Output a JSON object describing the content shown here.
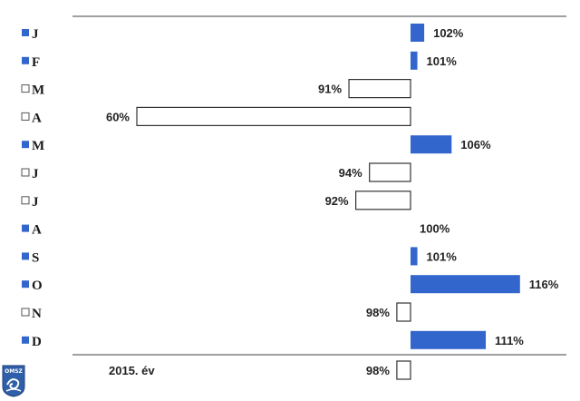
{
  "chart_data": {
    "type": "bar",
    "orientation": "horizontal",
    "baseline": 100,
    "categories": [
      "J",
      "F",
      "M",
      "A",
      "M",
      "J",
      "J",
      "A",
      "S",
      "O",
      "N",
      "D"
    ],
    "values": [
      102,
      101,
      91,
      60,
      106,
      94,
      92,
      100,
      101,
      116,
      98,
      111
    ],
    "labels": [
      "102%",
      "101%",
      "91%",
      "60%",
      "106%",
      "94%",
      "92%",
      "100%",
      "101%",
      "116%",
      "98%",
      "111%"
    ],
    "total": {
      "label": "2015. év",
      "value": 98,
      "value_label": "98%"
    },
    "colors": {
      "above": "#3366cc",
      "below": "#ffffff",
      "outline": "#333333",
      "axis": "#808080"
    },
    "grid": false,
    "legend": "none"
  },
  "logo": {
    "text": "OMSZ"
  }
}
